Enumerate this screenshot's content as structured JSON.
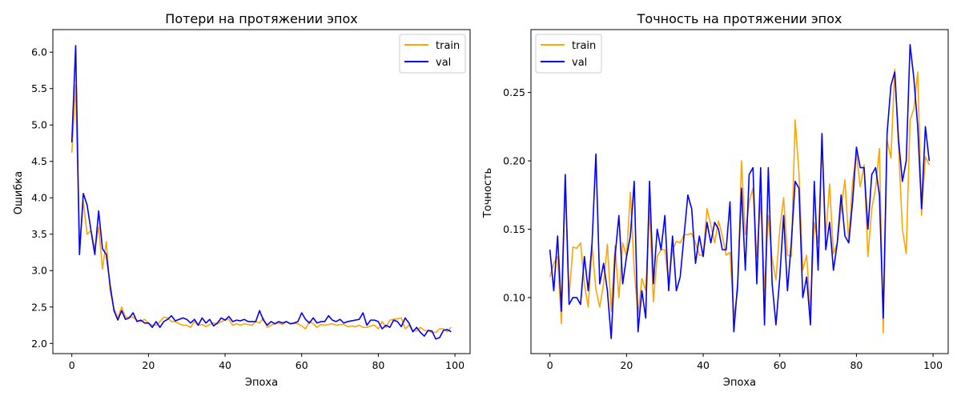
{
  "chart_data": [
    {
      "type": "line",
      "title": "Потери на протяжении эпох",
      "xlabel": "Эпоха",
      "ylabel": "Ошибка",
      "xlim": [
        -4.95,
        103.95
      ],
      "ylim": [
        1.86,
        6.31
      ],
      "xticks": [
        0,
        20,
        40,
        60,
        80,
        100
      ],
      "yticks": [
        2.0,
        2.5,
        3.0,
        3.5,
        4.0,
        4.5,
        5.0,
        5.5,
        6.0
      ],
      "ytick_format": 1,
      "legend": "top-right",
      "grid": false,
      "series": [
        {
          "name": "train",
          "color": "#ffa500",
          "values": [
            4.62,
            5.55,
            3.33,
            3.95,
            3.5,
            3.55,
            3.3,
            3.6,
            3.02,
            3.4,
            2.72,
            2.48,
            2.35,
            2.5,
            2.36,
            2.36,
            2.36,
            2.32,
            2.3,
            2.33,
            2.28,
            2.25,
            2.25,
            2.3,
            2.36,
            2.35,
            2.3,
            2.3,
            2.27,
            2.25,
            2.25,
            2.22,
            2.3,
            2.25,
            2.26,
            2.23,
            2.26,
            2.28,
            2.27,
            2.3,
            2.32,
            2.33,
            2.25,
            2.27,
            2.25,
            2.27,
            2.26,
            2.25,
            2.3,
            2.28,
            2.35,
            2.22,
            2.25,
            2.27,
            2.28,
            2.26,
            2.3,
            2.27,
            2.28,
            2.27,
            2.24,
            2.2,
            2.3,
            2.27,
            2.22,
            2.26,
            2.25,
            2.26,
            2.27,
            2.25,
            2.26,
            2.26,
            2.23,
            2.24,
            2.23,
            2.25,
            2.22,
            2.22,
            2.24,
            2.25,
            2.2,
            2.3,
            2.22,
            2.32,
            2.33,
            2.34,
            2.35,
            2.2,
            2.25,
            2.18,
            2.17,
            2.22,
            2.18,
            2.17,
            2.15,
            2.15,
            2.2,
            2.2,
            2.16,
            2.22
          ]
        },
        {
          "name": "val",
          "color": "#0000ff",
          "values": [
            4.76,
            6.09,
            3.22,
            4.06,
            3.9,
            3.55,
            3.22,
            3.82,
            3.3,
            3.22,
            2.8,
            2.45,
            2.32,
            2.45,
            2.33,
            2.35,
            2.42,
            2.3,
            2.32,
            2.28,
            2.28,
            2.22,
            2.3,
            2.22,
            2.3,
            2.33,
            2.38,
            2.31,
            2.33,
            2.35,
            2.33,
            2.28,
            2.33,
            2.25,
            2.35,
            2.28,
            2.33,
            2.24,
            2.28,
            2.35,
            2.32,
            2.37,
            2.3,
            2.32,
            2.31,
            2.33,
            2.3,
            2.3,
            2.3,
            2.45,
            2.32,
            2.25,
            2.3,
            2.27,
            2.3,
            2.28,
            2.3,
            2.27,
            2.28,
            2.3,
            2.42,
            2.33,
            2.28,
            2.35,
            2.28,
            2.3,
            2.3,
            2.38,
            2.32,
            2.3,
            2.33,
            2.28,
            2.3,
            2.31,
            2.32,
            2.33,
            2.42,
            2.25,
            2.32,
            2.32,
            2.3,
            2.2,
            2.25,
            2.22,
            2.32,
            2.3,
            2.23,
            2.35,
            2.28,
            2.16,
            2.22,
            2.15,
            2.1,
            2.18,
            2.17,
            2.06,
            2.08,
            2.18,
            2.19,
            2.16
          ]
        }
      ]
    },
    {
      "type": "line",
      "title": "Точность на протяжении эпох",
      "xlabel": "Эпоха",
      "ylabel": "Точность",
      "xlim": [
        -4.95,
        103.95
      ],
      "ylim": [
        0.059,
        0.296
      ],
      "xticks": [
        0,
        20,
        40,
        60,
        80,
        100
      ],
      "yticks": [
        0.1,
        0.15,
        0.2,
        0.25
      ],
      "ytick_format": 2,
      "legend": "top-left",
      "grid": false,
      "series": [
        {
          "name": "train",
          "color": "#ffa500",
          "values": [
            0.115,
            0.125,
            0.13,
            0.081,
            0.185,
            0.1,
            0.137,
            0.136,
            0.14,
            0.11,
            0.093,
            0.138,
            0.106,
            0.093,
            0.11,
            0.139,
            0.09,
            0.138,
            0.1,
            0.14,
            0.13,
            0.177,
            0.12,
            0.087,
            0.114,
            0.105,
            0.165,
            0.097,
            0.13,
            0.135,
            0.135,
            0.11,
            0.135,
            0.141,
            0.14,
            0.146,
            0.146,
            0.147,
            0.14,
            0.131,
            0.131,
            0.165,
            0.153,
            0.14,
            0.156,
            0.145,
            0.131,
            0.133,
            0.086,
            0.105,
            0.2,
            0.146,
            0.17,
            0.18,
            0.13,
            0.173,
            0.104,
            0.16,
            0.128,
            0.113,
            0.15,
            0.173,
            0.131,
            0.13,
            0.23,
            0.191,
            0.12,
            0.131,
            0.09,
            0.155,
            0.14,
            0.211,
            0.145,
            0.183,
            0.132,
            0.14,
            0.165,
            0.186,
            0.14,
            0.185,
            0.205,
            0.181,
            0.197,
            0.13,
            0.165,
            0.18,
            0.209,
            0.074,
            0.215,
            0.202,
            0.267,
            0.21,
            0.15,
            0.132,
            0.23,
            0.238,
            0.265,
            0.16,
            0.203,
            0.197
          ]
        },
        {
          "name": "val",
          "color": "#0000ff",
          "values": [
            0.135,
            0.105,
            0.145,
            0.09,
            0.19,
            0.095,
            0.1,
            0.1,
            0.095,
            0.13,
            0.105,
            0.14,
            0.205,
            0.11,
            0.125,
            0.105,
            0.07,
            0.13,
            0.16,
            0.11,
            0.13,
            0.145,
            0.185,
            0.075,
            0.105,
            0.085,
            0.185,
            0.11,
            0.15,
            0.135,
            0.16,
            0.105,
            0.145,
            0.105,
            0.115,
            0.145,
            0.175,
            0.165,
            0.125,
            0.145,
            0.13,
            0.155,
            0.14,
            0.155,
            0.15,
            0.135,
            0.135,
            0.17,
            0.075,
            0.11,
            0.18,
            0.12,
            0.19,
            0.195,
            0.11,
            0.195,
            0.08,
            0.195,
            0.11,
            0.08,
            0.115,
            0.16,
            0.105,
            0.14,
            0.185,
            0.18,
            0.1,
            0.115,
            0.08,
            0.185,
            0.12,
            0.22,
            0.135,
            0.155,
            0.12,
            0.14,
            0.175,
            0.145,
            0.14,
            0.17,
            0.21,
            0.195,
            0.195,
            0.15,
            0.19,
            0.195,
            0.175,
            0.085,
            0.22,
            0.255,
            0.265,
            0.215,
            0.185,
            0.2,
            0.285,
            0.26,
            0.225,
            0.165,
            0.225,
            0.2
          ]
        }
      ]
    }
  ]
}
